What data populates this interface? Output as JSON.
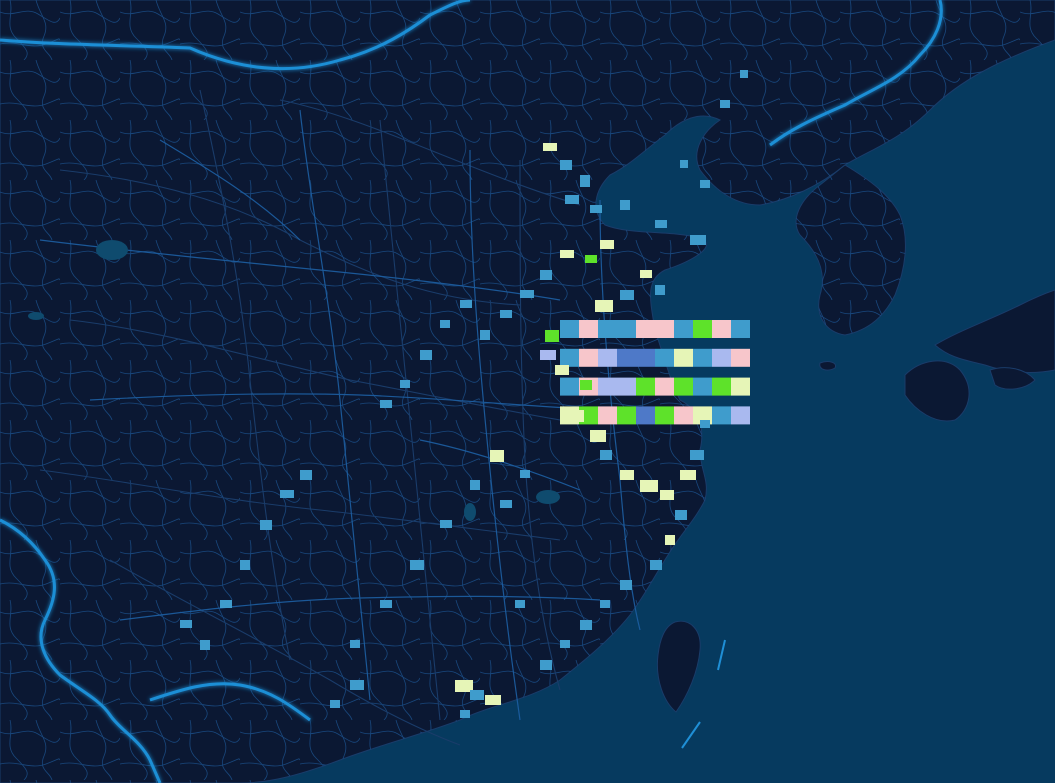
{
  "map": {
    "colors": {
      "land": "#0b1833",
      "sea": "#063a5f",
      "coast_glow": "#1f8fd6",
      "province_lines": "#1a3c6a",
      "roads": "#1d5fa3",
      "water_body": "#0f4b6e"
    },
    "legend_levels": [
      {
        "level": 1,
        "color": "#3f9ccc"
      },
      {
        "level": 2,
        "color": "#e6f5b7"
      },
      {
        "level": 3,
        "color": "#5ee22a"
      },
      {
        "level": 4,
        "color": "#f7c6cb"
      },
      {
        "level": 5,
        "color": "#a9b9ef"
      },
      {
        "level": 6,
        "color": "#4e79c8"
      }
    ]
  },
  "cells": [
    [
      1,
      4,
      1,
      1,
      4,
      4,
      1,
      3,
      4,
      1
    ],
    [
      1,
      4,
      5,
      6,
      6,
      1,
      2,
      1,
      5,
      4
    ],
    [
      1,
      4,
      5,
      5,
      3,
      4,
      3,
      1,
      3,
      2
    ],
    [
      2,
      3,
      4,
      3,
      6,
      3,
      4,
      2,
      1,
      5
    ]
  ]
}
